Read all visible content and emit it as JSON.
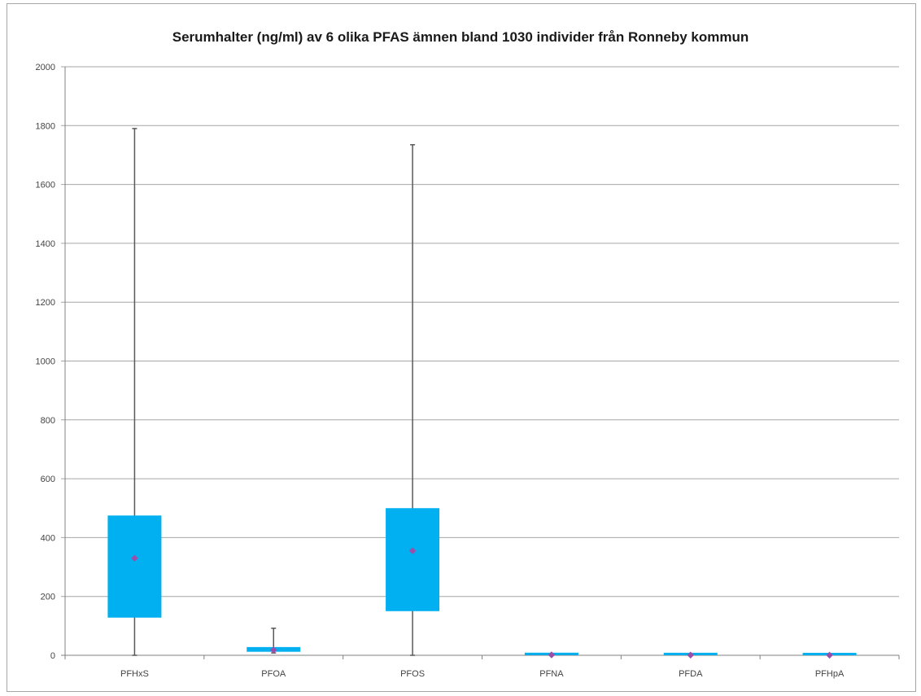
{
  "chart_data": {
    "type": "box",
    "title": "Serumhalter (ng/ml) av 6 olika PFAS ämnen bland 1030 individer från Ronneby kommun",
    "xlabel": "",
    "ylabel": "",
    "ylim": [
      0,
      2000
    ],
    "yticks": [
      "0",
      "200",
      "400",
      "600",
      "800",
      "1000",
      "1200",
      "1400",
      "1600",
      "1800",
      "2000"
    ],
    "grid": true,
    "categories": [
      "PFHxS",
      "PFOA",
      "PFOS",
      "PFNA",
      "PFDA",
      "PFHpA"
    ],
    "boxes": [
      {
        "min": 0,
        "q1": 128,
        "q3": 475,
        "max": 1790,
        "mean": 330
      },
      {
        "min": 8,
        "q1": 12,
        "q3": 28,
        "max": 92,
        "mean": 18
      },
      {
        "min": 0,
        "q1": 150,
        "q3": 500,
        "max": 1735,
        "mean": 355
      },
      {
        "min": 0,
        "q1": 0.5,
        "q3": 2.5,
        "max": 5,
        "mean": 1.5
      },
      {
        "min": 0,
        "q1": 0.3,
        "q3": 1.5,
        "max": 3,
        "mean": 0.8
      },
      {
        "min": 0,
        "q1": 0.1,
        "q3": 0.8,
        "max": 2,
        "mean": 0.4
      }
    ],
    "colors": {
      "box": "#00b0f0",
      "whisker": "#595959",
      "mean": "#9b4fa8",
      "grid": "#a6a6a6"
    }
  }
}
